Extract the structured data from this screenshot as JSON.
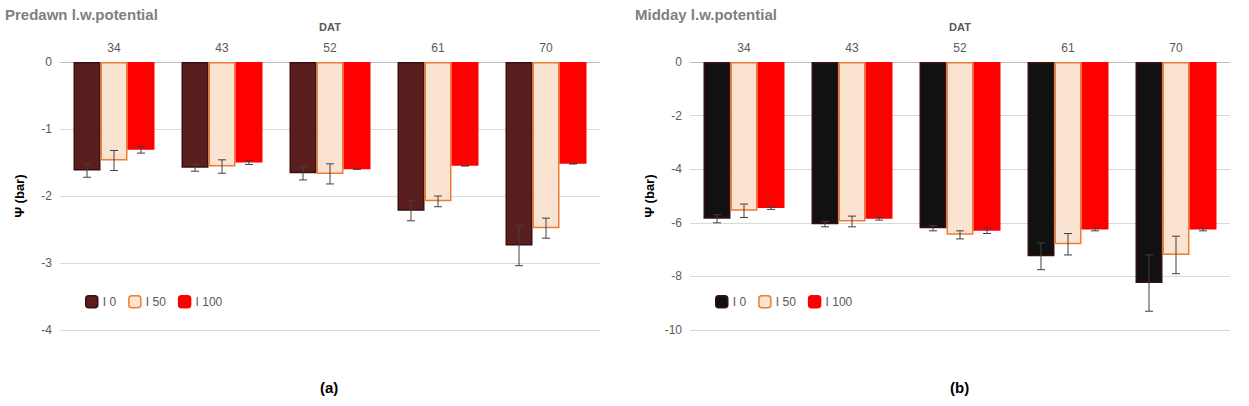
{
  "chart_data": [
    {
      "type": "bar",
      "title": "Predawn l.w.potential",
      "label": "(a)",
      "x_label": "DAT",
      "y_label": "Ψ (bar)",
      "categories": [
        "34",
        "43",
        "52",
        "61",
        "70"
      ],
      "series": [
        {
          "name": "I 0",
          "color": "#5a1e1e",
          "values": [
            -1.62,
            -1.58,
            -1.66,
            -2.22,
            -2.74
          ],
          "errors": [
            0.1,
            0.05,
            0.1,
            0.15,
            0.3
          ]
        },
        {
          "name": "I 50",
          "color": "#fbe3d2",
          "values": [
            -1.47,
            -1.56,
            -1.67,
            -2.08,
            -2.48
          ],
          "errors": [
            0.15,
            0.1,
            0.15,
            0.08,
            0.15
          ]
        },
        {
          "name": "I 100",
          "color": "#ff0000",
          "values": [
            -1.31,
            -1.5,
            -1.6,
            -1.55,
            -1.52
          ],
          "errors": [
            0.05,
            0.03,
            0,
            0,
            0
          ]
        }
      ],
      "ylim": [
        -4,
        0
      ],
      "yticks": [
        -4,
        -3,
        -2,
        -1,
        0
      ],
      "grid": true,
      "legend": "lower left"
    },
    {
      "type": "bar",
      "title": "Midday l.w.potential",
      "label": "(b)",
      "x_label": "DAT",
      "y_label": "Ψ (bar)",
      "categories": [
        "34",
        "43",
        "52",
        "61",
        "70"
      ],
      "series": [
        {
          "name": "I 0",
          "color": "#111111",
          "values": [
            -5.85,
            -6.05,
            -6.2,
            -7.25,
            -8.25
          ],
          "errors": [
            0.15,
            0.1,
            0.1,
            0.5,
            1.05
          ]
        },
        {
          "name": "I 50",
          "color": "#fbe3d2",
          "values": [
            -5.55,
            -5.95,
            -6.45,
            -6.8,
            -7.2
          ],
          "errors": [
            0.25,
            0.2,
            0.15,
            0.4,
            0.7
          ]
        },
        {
          "name": "I 100",
          "color": "#ff0000",
          "values": [
            -5.45,
            -5.85,
            -6.3,
            -6.25,
            -6.25
          ],
          "errors": [
            0.05,
            0.05,
            0.1,
            0.05,
            0.05
          ]
        }
      ],
      "ylim": [
        -10,
        0
      ],
      "yticks": [
        -10,
        -8,
        -6,
        -4,
        -2,
        0
      ],
      "grid": true,
      "legend": "lower left"
    }
  ]
}
